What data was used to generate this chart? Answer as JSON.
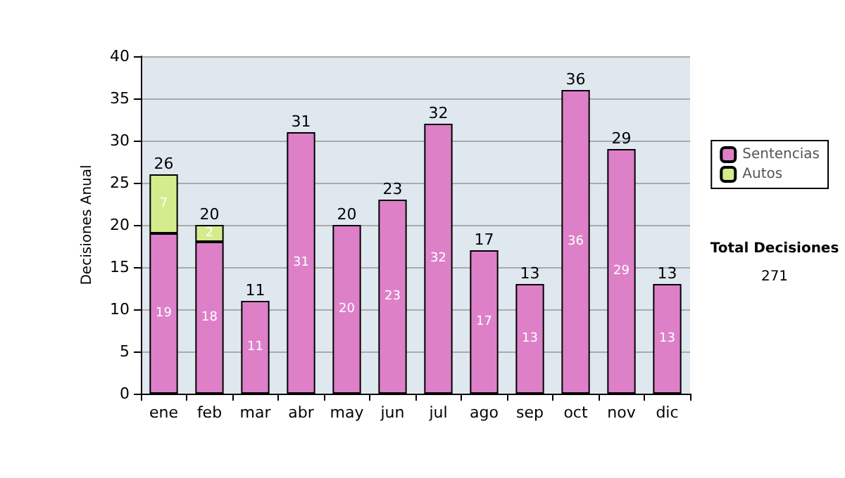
{
  "chart_data": {
    "type": "bar",
    "stacked": true,
    "ylabel": "Decisiones Anual",
    "categories": [
      "ene",
      "feb",
      "mar",
      "abr",
      "may",
      "jun",
      "jul",
      "ago",
      "sep",
      "oct",
      "nov",
      "dic"
    ],
    "series": [
      {
        "name": "Sentencias",
        "color": "#dd80c8",
        "values": [
          19,
          18,
          11,
          31,
          20,
          23,
          32,
          17,
          13,
          36,
          29,
          13
        ],
        "value_labels": [
          "19",
          "18",
          "11",
          "31",
          "20",
          "23",
          "32",
          "17",
          "13",
          "36",
          "29",
          "13"
        ]
      },
      {
        "name": "Autos",
        "color": "#d4ec8c",
        "values": [
          7,
          2,
          0,
          0,
          0,
          0,
          0,
          0,
          0,
          0,
          0,
          0
        ],
        "value_labels": [
          "7",
          "2",
          null,
          null,
          null,
          null,
          null,
          null,
          null,
          null,
          null,
          null
        ]
      }
    ],
    "totals": [
      "26",
      "20",
      "11",
      "31",
      "20",
      "23",
      "32",
      "17",
      "13",
      "36",
      "29",
      "13"
    ],
    "ylim": [
      0,
      40
    ],
    "yticks": [
      0,
      5,
      10,
      15,
      20,
      25,
      30,
      35,
      40
    ],
    "grid": "y",
    "legend": "right",
    "annotations": [
      "Total Decisiones",
      "271"
    ]
  }
}
